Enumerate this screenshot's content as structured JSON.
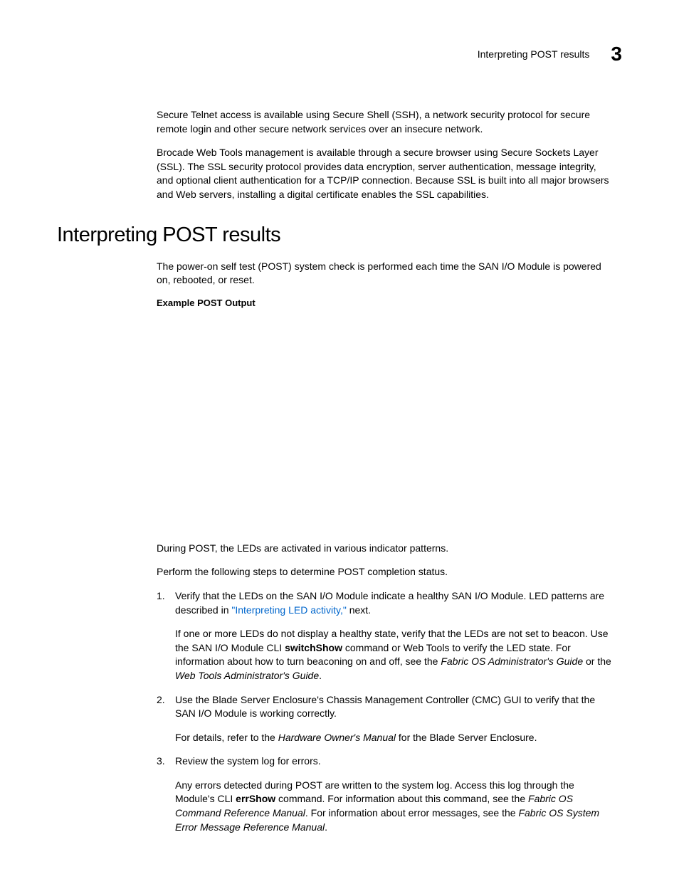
{
  "header": {
    "label": "Interpreting POST results",
    "chapter": "3"
  },
  "intro": {
    "para1": "Secure Telnet access is available using Secure Shell (SSH), a network security protocol for secure remote login and other secure network services over an insecure network.",
    "para2": "Brocade Web Tools management is available through a secure browser using Secure Sockets Layer (SSL). The SSL security protocol provides data encryption, server authentication, message integrity, and optional client authentication for a TCP/IP connection. Because SSL is built into all major browsers and Web servers, installing a digital certificate enables the SSL capabilities."
  },
  "section": {
    "heading": "Interpreting POST results",
    "intro": "The power-on self test (POST) system check is performed each time the SAN I/O Module is powered on, rebooted, or reset.",
    "example_label": "Example POST Output",
    "during": "During POST, the LEDs are activated in various indicator patterns.",
    "perform": "Perform the following steps to determine POST completion status.",
    "items": {
      "1": {
        "marker": "1.",
        "p1_before": "Verify that the LEDs on the SAN I/O Module indicate a healthy SAN I/O Module. LED patterns are described in ",
        "p1_link": "\"Interpreting LED activity,\"",
        "p1_after": " next.",
        "p2_before": "If one or more LEDs do not display a healthy state, verify that the LEDs are not set to beacon. Use the SAN I/O Module CLI ",
        "p2_cmd": "switchShow",
        "p2_mid": " command or Web Tools to verify the LED state. For information about how to turn beaconing on and off, see the ",
        "p2_guide1": "Fabric OS Administrator's Guide",
        "p2_or": " or the ",
        "p2_guide2": "Web Tools Administrator's Guide",
        "p2_end": "."
      },
      "2": {
        "marker": "2.",
        "p1": "Use the Blade Server Enclosure's Chassis Management Controller (CMC) GUI to verify that the SAN I/O Module is working correctly.",
        "p2_before": "For details, refer to the ",
        "p2_italic": "Hardware Owner's Manual",
        "p2_after": " for the Blade Server Enclosure."
      },
      "3": {
        "marker": "3.",
        "p1": "Review the system log for errors.",
        "p2_before": "Any errors detected during POST are written to the system log. Access this log through the Module's CLI ",
        "p2_cmd": "errShow",
        "p2_mid1": " command. For information about this command, see the ",
        "p2_guide1": "Fabric OS Command Reference Manual",
        "p2_mid2": ". For information about error messages, see the ",
        "p2_guide2": "Fabric OS System Error Message Reference Manual",
        "p2_end": "."
      }
    }
  },
  "colors": {
    "text": "#000000",
    "link": "#0066cc",
    "background": "#ffffff"
  }
}
